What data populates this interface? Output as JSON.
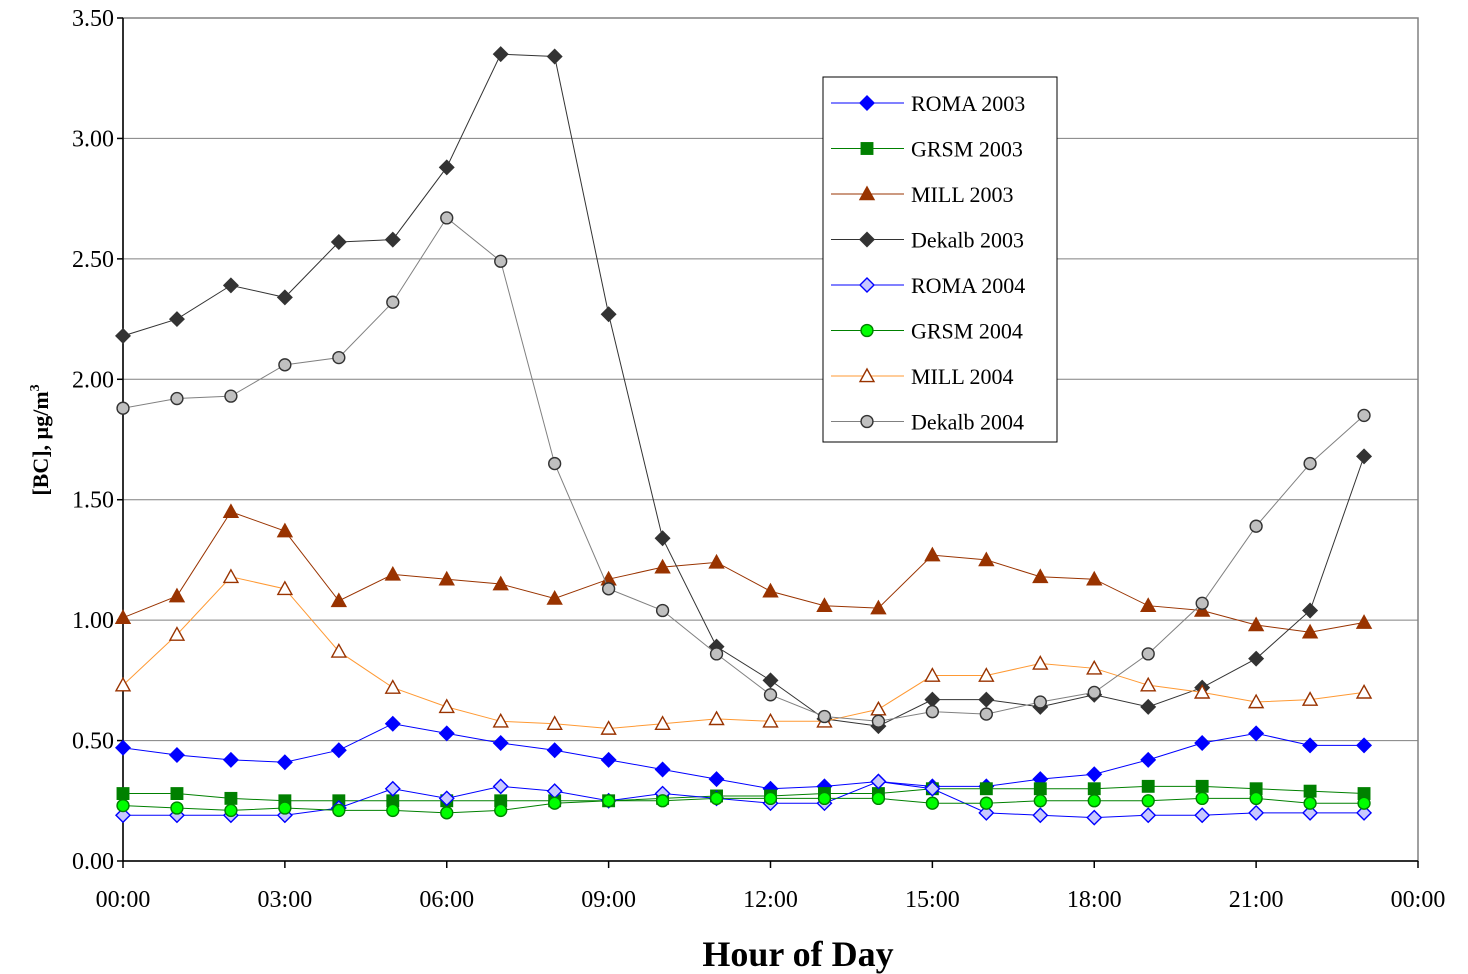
{
  "chart_data": {
    "type": "line",
    "xlabel": "Hour of Day",
    "ylabel": "[BC], µg/m",
    "ylabel_sup": "3",
    "ylim": [
      0,
      3.5
    ],
    "yticks": [
      "0.00",
      "0.50",
      "1.00",
      "1.50",
      "2.00",
      "2.50",
      "3.00",
      "3.50"
    ],
    "xlim": [
      0,
      24
    ],
    "xticks": [
      "00:00",
      "03:00",
      "06:00",
      "09:00",
      "12:00",
      "15:00",
      "18:00",
      "21:00",
      "00:00"
    ],
    "grid": "horizontal",
    "legend_position": "top-center-right",
    "x": [
      0,
      1,
      2,
      3,
      4,
      5,
      6,
      7,
      8,
      9,
      10,
      11,
      12,
      13,
      14,
      15,
      16,
      17,
      18,
      19,
      20,
      21,
      22,
      23
    ],
    "series": [
      {
        "name": "ROMA 2003",
        "color": "#0000ff",
        "marker": "diamond",
        "filled": true,
        "fill": "#0000ff",
        "values": [
          0.47,
          0.44,
          0.42,
          0.41,
          0.46,
          0.57,
          0.53,
          0.49,
          0.46,
          0.42,
          0.38,
          0.34,
          0.3,
          0.31,
          0.33,
          0.31,
          0.31,
          0.34,
          0.36,
          0.42,
          0.49,
          0.53,
          0.48,
          0.48
        ]
      },
      {
        "name": "GRSM 2003",
        "color": "#008000",
        "marker": "square",
        "filled": true,
        "fill": "#008000",
        "values": [
          0.28,
          0.28,
          0.26,
          0.25,
          0.25,
          0.25,
          0.25,
          0.25,
          0.25,
          0.25,
          0.26,
          0.27,
          0.27,
          0.28,
          0.28,
          0.3,
          0.3,
          0.3,
          0.3,
          0.31,
          0.31,
          0.3,
          0.29,
          0.28
        ]
      },
      {
        "name": "MILL 2003",
        "color": "#993300",
        "marker": "triangle",
        "filled": true,
        "fill": "#993300",
        "values": [
          1.01,
          1.1,
          1.45,
          1.37,
          1.08,
          1.19,
          1.17,
          1.15,
          1.09,
          1.17,
          1.22,
          1.24,
          1.12,
          1.06,
          1.05,
          1.27,
          1.25,
          1.18,
          1.17,
          1.06,
          1.04,
          0.98,
          0.95,
          0.99
        ]
      },
      {
        "name": "Dekalb 2003",
        "color": "#333333",
        "marker": "diamond",
        "filled": true,
        "fill": "#333333",
        "values": [
          2.18,
          2.25,
          2.39,
          2.34,
          2.57,
          2.58,
          2.88,
          3.35,
          3.34,
          2.27,
          1.34,
          0.89,
          0.75,
          0.59,
          0.56,
          0.67,
          0.67,
          0.64,
          0.69,
          0.64,
          0.72,
          0.84,
          1.04,
          1.68
        ]
      },
      {
        "name": "ROMA 2004",
        "color": "#0000ff",
        "marker": "diamond",
        "filled": false,
        "fill": "#c8c8ff",
        "values": [
          0.19,
          0.19,
          0.19,
          0.19,
          0.22,
          0.3,
          0.26,
          0.31,
          0.29,
          0.25,
          0.28,
          0.26,
          0.24,
          0.24,
          0.33,
          0.3,
          0.2,
          0.19,
          0.18,
          0.19,
          0.19,
          0.2,
          0.2,
          0.2
        ]
      },
      {
        "name": "GRSM 2004",
        "color": "#008000",
        "marker": "circle",
        "filled": true,
        "fill": "#00ff00",
        "values": [
          0.23,
          0.22,
          0.21,
          0.22,
          0.21,
          0.21,
          0.2,
          0.21,
          0.24,
          0.25,
          0.25,
          0.26,
          0.26,
          0.26,
          0.26,
          0.24,
          0.24,
          0.25,
          0.25,
          0.25,
          0.26,
          0.26,
          0.24,
          0.24
        ]
      },
      {
        "name": "MILL 2004",
        "color": "#ff9933",
        "marker": "triangle",
        "filled": false,
        "fill": "#ffffff",
        "stroke": "#993300",
        "values": [
          0.73,
          0.94,
          1.18,
          1.13,
          0.87,
          0.72,
          0.64,
          0.58,
          0.57,
          0.55,
          0.57,
          0.59,
          0.58,
          0.58,
          0.63,
          0.77,
          0.77,
          0.82,
          0.8,
          0.73,
          0.7,
          0.66,
          0.67,
          0.7
        ]
      },
      {
        "name": "Dekalb 2004",
        "color": "#808080",
        "marker": "circle",
        "filled": true,
        "fill": "#c0c0c0",
        "stroke": "#333333",
        "values": [
          1.88,
          1.92,
          1.93,
          2.06,
          2.09,
          2.32,
          2.67,
          2.49,
          1.65,
          1.13,
          1.04,
          0.86,
          0.69,
          0.6,
          0.58,
          0.62,
          0.61,
          0.66,
          0.7,
          0.86,
          1.07,
          1.39,
          1.65,
          1.85
        ]
      }
    ]
  }
}
